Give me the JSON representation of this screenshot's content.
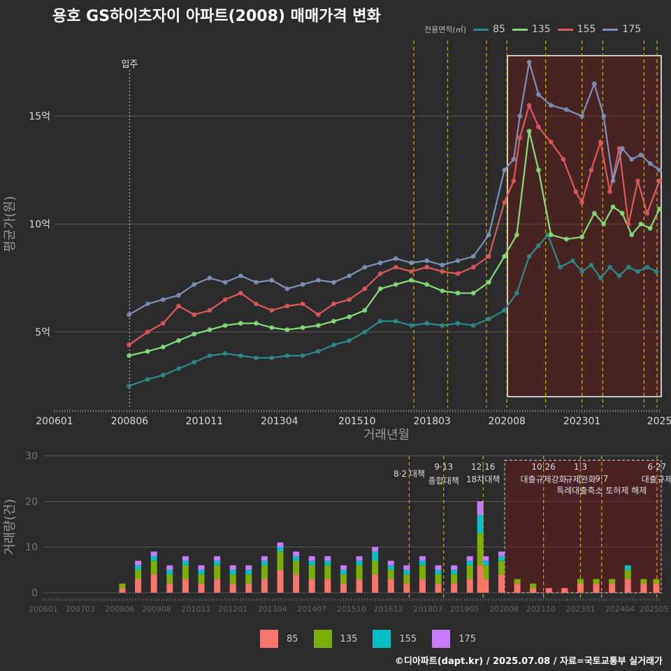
{
  "title": "용호 GS하이츠자이 아파트(2008) 매매가격 변화",
  "legend_top": {
    "title": "전용면적(㎡)",
    "items": [
      {
        "label": "85",
        "color": "#2f8a8a"
      },
      {
        "label": "135",
        "color": "#86e07a"
      },
      {
        "label": "155",
        "color": "#e05a5a"
      },
      {
        "label": "175",
        "color": "#7f93b8"
      }
    ]
  },
  "legend_bottom": {
    "items": [
      {
        "label": "85",
        "color": "#f8766d"
      },
      {
        "label": "135",
        "color": "#7cae00"
      },
      {
        "label": "155",
        "color": "#00bfc4"
      },
      {
        "label": "175",
        "color": "#c77cff"
      }
    ]
  },
  "footer": "©디아파트(dapt.kr) / 2025.07.08 / 자료=국토교통부 실거래가",
  "chart_data": [
    {
      "type": "line",
      "title": "용호 GS하이츠자이 아파트(2008) 매매가격 변화",
      "xlabel": "거래년월",
      "ylabel": "평균가(원)",
      "x_tick_labels": [
        "200601",
        "200806",
        "201011",
        "201304",
        "201510",
        "201803",
        "202008",
        "202301",
        "2025"
      ],
      "y_tick_labels": [
        "5억",
        "10억",
        "15억"
      ],
      "y_ticks": [
        5,
        10,
        15
      ],
      "ylim": [
        1.5,
        18.5
      ],
      "xlim": [
        2006.0,
        2025.6
      ],
      "x_ticks": [
        2006.0,
        2008.42,
        2010.83,
        2013.25,
        2015.75,
        2018.17,
        2020.58,
        2023.0,
        2025.5
      ],
      "annotations": [
        {
          "label": "입주",
          "x": 2008.42
        }
      ],
      "vlines": [
        2017.58,
        2018.67,
        2019.92,
        2020.58,
        2021.83,
        2023.0,
        2023.67,
        2025.0,
        2025.42
      ],
      "highlight_range": [
        2020.6,
        2025.6
      ],
      "highlight_y": [
        2.0,
        17.8
      ],
      "series": [
        {
          "name": "85",
          "color": "#2f8a8a",
          "x": [
            2008.4,
            2009.0,
            2009.5,
            2010.0,
            2010.5,
            2011.0,
            2011.5,
            2012.0,
            2012.5,
            2013.0,
            2013.5,
            2014.0,
            2014.5,
            2015.0,
            2015.5,
            2016.0,
            2016.5,
            2017.0,
            2017.5,
            2018.0,
            2018.5,
            2019.0,
            2019.5,
            2020.0,
            2020.5,
            2020.9,
            2021.3,
            2021.6,
            2021.9,
            2022.3,
            2022.7,
            2023.0,
            2023.3,
            2023.6,
            2023.9,
            2024.2,
            2024.5,
            2024.8,
            2025.1,
            2025.4
          ],
          "y": [
            2.5,
            2.8,
            3.0,
            3.3,
            3.6,
            3.9,
            4.0,
            3.9,
            3.8,
            3.8,
            3.9,
            3.9,
            4.1,
            4.4,
            4.6,
            5.0,
            5.5,
            5.5,
            5.3,
            5.4,
            5.3,
            5.4,
            5.3,
            5.6,
            6.0,
            6.8,
            8.5,
            9.0,
            9.5,
            8.0,
            8.3,
            7.8,
            8.1,
            7.5,
            8.0,
            7.6,
            8.0,
            7.8,
            8.0,
            7.8
          ]
        },
        {
          "name": "135",
          "color": "#86e07a",
          "x": [
            2008.4,
            2009.0,
            2009.5,
            2010.0,
            2010.5,
            2011.0,
            2011.5,
            2012.0,
            2012.5,
            2013.0,
            2013.5,
            2014.0,
            2014.5,
            2015.0,
            2015.5,
            2016.0,
            2016.5,
            2017.0,
            2017.5,
            2018.0,
            2018.5,
            2019.0,
            2019.5,
            2020.0,
            2020.5,
            2020.9,
            2021.3,
            2021.6,
            2022.0,
            2022.5,
            2023.0,
            2023.4,
            2023.7,
            2024.0,
            2024.3,
            2024.6,
            2024.9,
            2025.2,
            2025.5
          ],
          "y": [
            3.9,
            4.1,
            4.3,
            4.6,
            4.9,
            5.1,
            5.3,
            5.4,
            5.4,
            5.2,
            5.1,
            5.2,
            5.3,
            5.5,
            5.7,
            6.0,
            7.0,
            7.2,
            7.4,
            7.2,
            6.9,
            6.8,
            6.8,
            7.3,
            8.5,
            9.5,
            14.3,
            12.5,
            9.5,
            9.3,
            9.4,
            10.5,
            10.0,
            10.8,
            10.5,
            9.5,
            10.0,
            9.8,
            10.7
          ]
        },
        {
          "name": "155",
          "color": "#e05a5a",
          "x": [
            2008.4,
            2009.0,
            2009.5,
            2010.0,
            2010.5,
            2011.0,
            2011.5,
            2012.0,
            2012.5,
            2013.0,
            2013.5,
            2014.0,
            2014.5,
            2015.0,
            2015.5,
            2016.0,
            2016.5,
            2017.0,
            2017.5,
            2018.0,
            2018.5,
            2019.0,
            2019.5,
            2020.0,
            2020.5,
            2020.8,
            2021.0,
            2021.3,
            2021.6,
            2022.0,
            2022.4,
            2022.8,
            2023.0,
            2023.3,
            2023.6,
            2023.9,
            2024.2,
            2024.5,
            2024.8,
            2025.1,
            2025.5
          ],
          "y": [
            4.4,
            5.0,
            5.4,
            6.2,
            5.8,
            6.0,
            6.5,
            6.8,
            6.3,
            6.0,
            6.2,
            6.3,
            5.8,
            6.3,
            6.5,
            7.0,
            7.7,
            8.0,
            7.8,
            8.0,
            7.8,
            7.7,
            8.0,
            8.5,
            11.0,
            12.0,
            14.0,
            15.5,
            14.5,
            13.8,
            13.0,
            11.5,
            11.0,
            12.5,
            13.8,
            11.5,
            13.5,
            10.0,
            12.0,
            10.5,
            12.0
          ]
        },
        {
          "name": "175",
          "color": "#7f93b8",
          "x": [
            2008.4,
            2009.0,
            2009.5,
            2010.0,
            2010.5,
            2011.0,
            2011.5,
            2012.0,
            2012.5,
            2013.0,
            2013.5,
            2014.0,
            2014.5,
            2015.0,
            2015.5,
            2016.0,
            2016.5,
            2017.0,
            2017.5,
            2018.0,
            2018.5,
            2019.0,
            2019.5,
            2020.0,
            2020.5,
            2020.8,
            2021.0,
            2021.3,
            2021.6,
            2022.0,
            2022.5,
            2023.0,
            2023.4,
            2023.7,
            2024.0,
            2024.3,
            2024.6,
            2024.9,
            2025.2,
            2025.5
          ],
          "y": [
            5.8,
            6.3,
            6.5,
            6.7,
            7.2,
            7.5,
            7.3,
            7.6,
            7.3,
            7.4,
            7.0,
            7.2,
            7.4,
            7.3,
            7.6,
            8.0,
            8.2,
            8.4,
            8.2,
            8.3,
            8.1,
            8.3,
            8.5,
            9.5,
            12.5,
            13.0,
            15.0,
            17.5,
            16.0,
            15.5,
            15.3,
            15.0,
            16.5,
            15.0,
            12.0,
            13.5,
            13.0,
            13.2,
            12.8,
            12.5
          ]
        }
      ]
    },
    {
      "type": "bar",
      "stacked": true,
      "xlabel": "",
      "ylabel": "거래량(건)",
      "y_tick_labels": [
        "0",
        "10",
        "20",
        "30"
      ],
      "y_ticks": [
        0,
        10,
        20,
        30
      ],
      "ylim": [
        0,
        30
      ],
      "xlim": [
        2006.0,
        2025.6
      ],
      "x_tick_labels": [
        "200601",
        "200703",
        "200806",
        "200908",
        "201011",
        "201201",
        "201304",
        "201407",
        "201510",
        "201612",
        "201803",
        "201905",
        "202008",
        "202110",
        "202301",
        "202404",
        "202505"
      ],
      "x_ticks": [
        2006.0,
        2007.17,
        2008.42,
        2009.58,
        2010.83,
        2012.0,
        2013.25,
        2014.5,
        2015.75,
        2016.92,
        2018.17,
        2019.33,
        2020.58,
        2021.75,
        2023.0,
        2024.25,
        2025.33
      ],
      "highlight_range": [
        2020.6,
        2025.6
      ],
      "highlight_y": [
        0,
        29
      ],
      "events": [
        {
          "x": 2017.58,
          "date": "",
          "label": "8·2 대책"
        },
        {
          "x": 2018.67,
          "date": "9·13",
          "label": "종합대책"
        },
        {
          "x": 2019.92,
          "date": "12·16",
          "label": "18차대책"
        },
        {
          "x": 2021.83,
          "date": "10·26",
          "label": "대출규제강화"
        },
        {
          "x": 2023.0,
          "date": "1·3",
          "label": "규제완화"
        },
        {
          "x": 2023.67,
          "date": "9·7",
          "label": "특례대출축소 토허제 해제"
        },
        {
          "x": 2025.42,
          "date": "6·27",
          "label": "대출규제"
        }
      ],
      "series": [
        {
          "name": "85",
          "color": "#f8766d",
          "x": [
            2008.5,
            2009.0,
            2009.5,
            2010.0,
            2010.5,
            2011.0,
            2011.5,
            2012.0,
            2012.5,
            2013.0,
            2013.5,
            2014.0,
            2014.5,
            2015.0,
            2015.5,
            2016.0,
            2016.5,
            2017.0,
            2017.5,
            2018.0,
            2018.5,
            2019.0,
            2019.5,
            2019.83,
            2020.0,
            2020.5,
            2021.0,
            2021.5,
            2022.0,
            2022.5,
            2023.0,
            2023.5,
            2024.0,
            2024.5,
            2025.0,
            2025.4
          ],
          "values": [
            1,
            3,
            4,
            2,
            3,
            2,
            3,
            2,
            2,
            3,
            5,
            4,
            3,
            3,
            2,
            3,
            4,
            3,
            2,
            3,
            2,
            2,
            3,
            6,
            3,
            4,
            2,
            1,
            1,
            1,
            2,
            2,
            2,
            3,
            2,
            2
          ]
        },
        {
          "name": "135",
          "color": "#7cae00",
          "x": [
            2008.5,
            2009.0,
            2009.5,
            2010.0,
            2010.5,
            2011.0,
            2011.5,
            2012.0,
            2012.5,
            2013.0,
            2013.5,
            2014.0,
            2014.5,
            2015.0,
            2015.5,
            2016.0,
            2016.5,
            2017.0,
            2017.5,
            2018.0,
            2018.5,
            2019.0,
            2019.5,
            2019.83,
            2020.0,
            2020.5,
            2021.0,
            2021.5,
            2022.0,
            2022.5,
            2023.0,
            2023.5,
            2024.0,
            2024.5,
            2025.0,
            2025.4
          ],
          "values": [
            1,
            2,
            3,
            2,
            3,
            2,
            3,
            2,
            2,
            3,
            4,
            3,
            3,
            3,
            2,
            3,
            3,
            2,
            2,
            3,
            2,
            2,
            3,
            7,
            3,
            3,
            1,
            1,
            0,
            0,
            1,
            1,
            1,
            2,
            1,
            1
          ]
        },
        {
          "name": "155",
          "color": "#00bfc4",
          "x": [
            2008.5,
            2009.0,
            2009.5,
            2010.0,
            2010.5,
            2011.0,
            2011.5,
            2012.0,
            2012.5,
            2013.0,
            2013.5,
            2014.0,
            2014.5,
            2015.0,
            2015.5,
            2016.0,
            2016.5,
            2017.0,
            2017.5,
            2018.0,
            2018.5,
            2019.0,
            2019.5,
            2019.83,
            2020.0,
            2020.5,
            2021.0,
            2021.5,
            2022.0,
            2022.5,
            2023.0,
            2023.5,
            2024.0,
            2024.5,
            2025.0,
            2025.4
          ],
          "values": [
            0,
            1,
            1,
            1,
            1,
            1,
            1,
            1,
            1,
            1,
            1,
            1,
            1,
            1,
            1,
            1,
            2,
            1,
            1,
            1,
            1,
            1,
            1,
            4,
            1,
            1,
            0,
            0,
            0,
            0,
            0,
            0,
            0,
            1,
            0,
            0
          ]
        },
        {
          "name": "175",
          "color": "#c77cff",
          "x": [
            2008.5,
            2009.0,
            2009.5,
            2010.0,
            2010.5,
            2011.0,
            2011.5,
            2012.0,
            2012.5,
            2013.0,
            2013.5,
            2014.0,
            2014.5,
            2015.0,
            2015.5,
            2016.0,
            2016.5,
            2017.0,
            2017.5,
            2018.0,
            2018.5,
            2019.0,
            2019.5,
            2019.83,
            2020.0,
            2020.5,
            2021.0,
            2021.5,
            2022.0,
            2022.5,
            2023.0,
            2023.5,
            2024.0,
            2024.5,
            2025.0,
            2025.4
          ],
          "values": [
            0,
            1,
            1,
            1,
            1,
            1,
            1,
            1,
            1,
            1,
            1,
            1,
            1,
            1,
            1,
            1,
            1,
            1,
            1,
            1,
            1,
            1,
            1,
            3,
            1,
            1,
            0,
            0,
            0,
            0,
            0,
            0,
            0,
            0,
            0,
            0
          ]
        }
      ]
    }
  ]
}
